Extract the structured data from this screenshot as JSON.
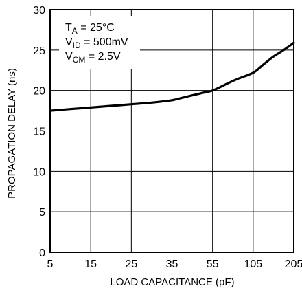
{
  "chart_data": {
    "type": "line",
    "title": "",
    "xlabel": "LOAD CAPACITANCE (pF)",
    "ylabel": "PROPAGATION DELAY (ns)",
    "x_tick_labels": [
      "5",
      "15",
      "25",
      "35",
      "55",
      "105",
      "205"
    ],
    "y_ticks": [
      0,
      5,
      10,
      15,
      20,
      25,
      30
    ],
    "ylim": [
      0,
      30
    ],
    "grid": true,
    "annotations": [
      {
        "main": "T",
        "sub": "A",
        "rest": " = 25°C"
      },
      {
        "main": "V",
        "sub": "ID",
        "rest": " = 500mV"
      },
      {
        "main": "V",
        "sub": "CM",
        "rest": " = 2.5V"
      }
    ],
    "series": [
      {
        "x": [
          5,
          10,
          15,
          20,
          25,
          30,
          35,
          40,
          45,
          50,
          55,
          70,
          85,
          105,
          130,
          155,
          180,
          205
        ],
        "y": [
          17.5,
          17.7,
          17.9,
          18.1,
          18.3,
          18.5,
          18.8,
          19.1,
          19.4,
          19.7,
          20.0,
          20.7,
          21.4,
          22.2,
          23.2,
          24.2,
          25.0,
          25.9
        ]
      }
    ]
  }
}
